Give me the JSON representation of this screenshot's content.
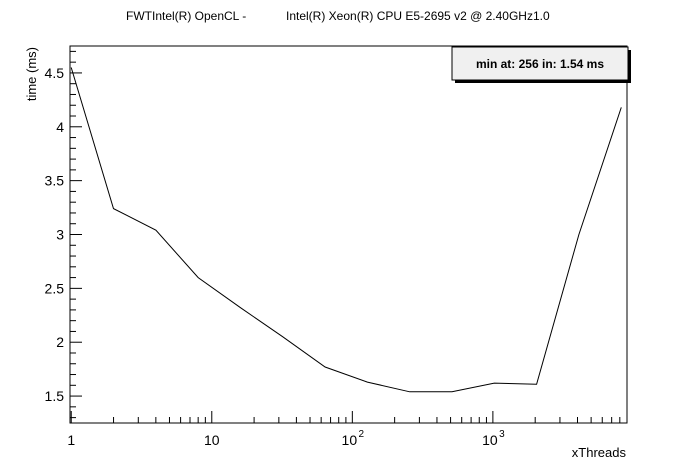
{
  "chart_data": {
    "type": "line",
    "title_left": "FWTIntel(R) OpenCL -",
    "title_right": "Intel(R) Xeon(R) CPU E5-2695 v2 @ 2.40GHz1.0",
    "xlabel": "xThreads",
    "ylabel": "time (ms)",
    "x_scale": "log",
    "xlim": [
      0.98,
      9000
    ],
    "ylim": [
      1.25,
      4.75
    ],
    "grid": false,
    "x_ticks": [
      {
        "value": 1,
        "label": "1",
        "sup": ""
      },
      {
        "value": 10,
        "label": "10",
        "sup": ""
      },
      {
        "value": 100,
        "label": "10",
        "sup": "2"
      },
      {
        "value": 1000,
        "label": "10",
        "sup": "3"
      }
    ],
    "y_ticks": [
      {
        "value": 1.5,
        "label": "1.5"
      },
      {
        "value": 2,
        "label": "2"
      },
      {
        "value": 2.5,
        "label": "2.5"
      },
      {
        "value": 3,
        "label": "3"
      },
      {
        "value": 3.5,
        "label": "3.5"
      },
      {
        "value": 4,
        "label": "4"
      },
      {
        "value": 4.5,
        "label": "4.5"
      }
    ],
    "legend_text": "min at: 256 in: 1.54 ms",
    "legend_position": "top-right",
    "series": [
      {
        "x": [
          1,
          2,
          4,
          8,
          16,
          32,
          64,
          128,
          256,
          512,
          1024,
          2048,
          4096,
          8192
        ],
        "y": [
          4.55,
          3.24,
          3.04,
          2.6,
          2.32,
          2.05,
          1.77,
          1.63,
          1.54,
          1.54,
          1.62,
          1.61,
          3.0,
          4.18
        ]
      }
    ]
  }
}
